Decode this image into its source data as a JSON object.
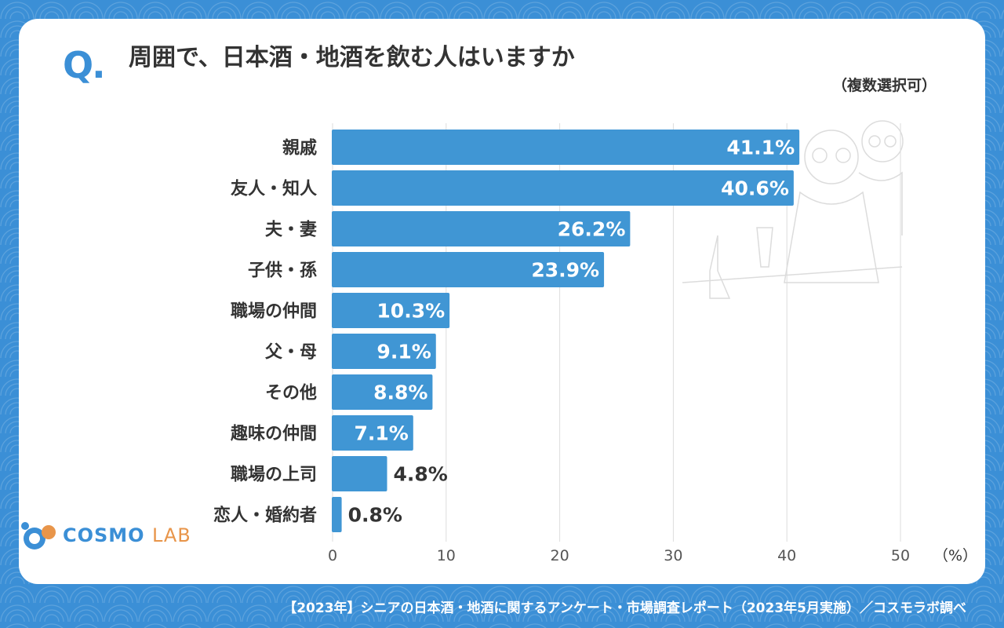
{
  "header": {
    "q_mark": "Q.",
    "question": "周囲で、日本酒・地酒を飲む人はいますか",
    "note": "（複数選択可）"
  },
  "logo": {
    "name_main": "COSMO",
    "name_sub": "LAB"
  },
  "footer": {
    "source": "【2023年】シニアの日本酒・地酒に関するアンケート・市場調査レポート（2023年5月実施）／コスモラボ調べ"
  },
  "colors": {
    "bar": "#4096d4",
    "accent_blue": "#3b8fd6",
    "accent_orange": "#e8954a",
    "text": "#333333",
    "grid": "#dddddd"
  },
  "chart_data": {
    "type": "bar",
    "orientation": "horizontal",
    "categories": [
      "親戚",
      "友人・知人",
      "夫・妻",
      "子供・孫",
      "職場の仲間",
      "父・母",
      "その他",
      "趣味の仲間",
      "職場の上司",
      "恋人・婚約者"
    ],
    "values": [
      41.1,
      40.6,
      26.2,
      23.9,
      10.3,
      9.1,
      8.8,
      7.1,
      4.8,
      0.8
    ],
    "value_labels": [
      "41.1%",
      "40.6%",
      "26.2%",
      "23.9%",
      "10.3%",
      "9.1%",
      "8.8%",
      "7.1%",
      "4.8%",
      "0.8%"
    ],
    "xlim": [
      0,
      50
    ],
    "xticks": [
      "0",
      "10",
      "20",
      "30",
      "40",
      "50"
    ],
    "unit_label": "（%）",
    "grid": true
  }
}
